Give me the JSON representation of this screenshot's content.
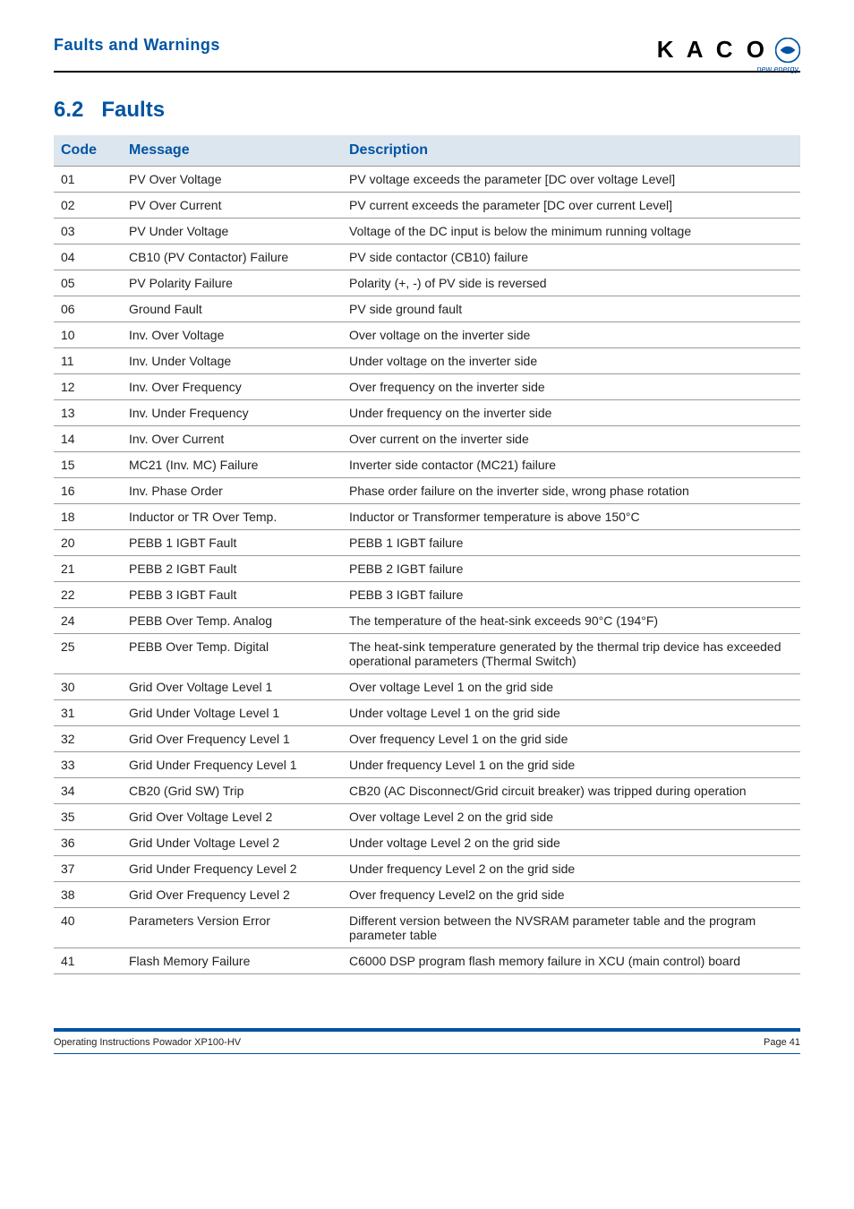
{
  "header": {
    "title": "Faults and Warnings",
    "logo_text": "K A C O",
    "logo_subtitle": "new energy."
  },
  "section": {
    "number": "6.2",
    "title": "Faults"
  },
  "table": {
    "columns": [
      "Code",
      "Message",
      "Description"
    ],
    "rows": [
      [
        "01",
        "PV Over Voltage",
        "PV voltage exceeds the parameter [DC over voltage Level]"
      ],
      [
        "02",
        "PV Over Current",
        "PV current exceeds the parameter [DC over current Level]"
      ],
      [
        "03",
        "PV Under Voltage",
        "Voltage of the DC input is below the minimum running voltage"
      ],
      [
        "04",
        "CB10 (PV Contactor) Failure",
        "PV side contactor (CB10) failure"
      ],
      [
        "05",
        "PV Polarity Failure",
        "Polarity (+, -) of PV side is reversed"
      ],
      [
        "06",
        "Ground Fault",
        "PV side ground fault"
      ],
      [
        "10",
        "Inv. Over Voltage",
        "Over voltage on the inverter side"
      ],
      [
        "11",
        "Inv. Under Voltage",
        "Under voltage on the inverter side"
      ],
      [
        "12",
        "Inv. Over Frequency",
        "Over frequency on the inverter side"
      ],
      [
        "13",
        "Inv. Under Frequency",
        "Under frequency on the inverter side"
      ],
      [
        "14",
        "Inv. Over Current",
        "Over current on the inverter side"
      ],
      [
        "15",
        "MC21 (Inv. MC) Failure",
        "Inverter side contactor (MC21) failure"
      ],
      [
        "16",
        "Inv. Phase Order",
        "Phase order failure on the inverter side, wrong phase rotation"
      ],
      [
        "18",
        "Inductor or TR Over Temp.",
        "Inductor or Transformer temperature is above 150°C"
      ],
      [
        "20",
        "PEBB 1 IGBT Fault",
        "PEBB 1 IGBT failure"
      ],
      [
        "21",
        "PEBB 2 IGBT Fault",
        "PEBB 2 IGBT failure"
      ],
      [
        "22",
        "PEBB 3 IGBT Fault",
        "PEBB 3 IGBT failure"
      ],
      [
        "24",
        "PEBB Over Temp. Analog",
        "The temperature of the heat-sink exceeds 90°C (194°F)"
      ],
      [
        "25",
        "PEBB Over Temp. Digital",
        "The heat-sink temperature generated by the thermal trip device has exceeded operational parameters (Thermal Switch)"
      ],
      [
        "30",
        "Grid Over Voltage Level 1",
        "Over voltage Level 1 on the grid side"
      ],
      [
        "31",
        "Grid Under Voltage Level 1",
        "Under voltage Level 1 on the grid side"
      ],
      [
        "32",
        "Grid Over Frequency Level 1",
        "Over frequency Level 1 on the grid side"
      ],
      [
        "33",
        "Grid Under Frequency Level 1",
        "Under frequency Level 1 on the grid side"
      ],
      [
        "34",
        "CB20 (Grid SW) Trip",
        "CB20 (AC Disconnect/Grid circuit breaker) was tripped during operation"
      ],
      [
        "35",
        "Grid Over Voltage Level 2",
        "Over voltage Level 2 on the grid side"
      ],
      [
        "36",
        "Grid Under Voltage Level 2",
        "Under voltage Level 2 on the grid side"
      ],
      [
        "37",
        "Grid Under Frequency Level 2",
        "Under frequency Level 2 on the grid side"
      ],
      [
        "38",
        "Grid Over Frequency Level 2",
        "Over frequency Level2 on the grid side"
      ],
      [
        "40",
        "Parameters Version Error",
        "Different version between the NVSRAM parameter table and the program parameter table"
      ],
      [
        "41",
        "Flash Memory Failure",
        "C6000 DSP program flash memory failure in XCU (main control) board"
      ]
    ]
  },
  "footer": {
    "left": "Operating Instructions Powador XP100-HV",
    "right": "Page 41"
  },
  "colors": {
    "blue": "#0054a3",
    "header_bg": "#dce6ef",
    "border": "#999999"
  }
}
